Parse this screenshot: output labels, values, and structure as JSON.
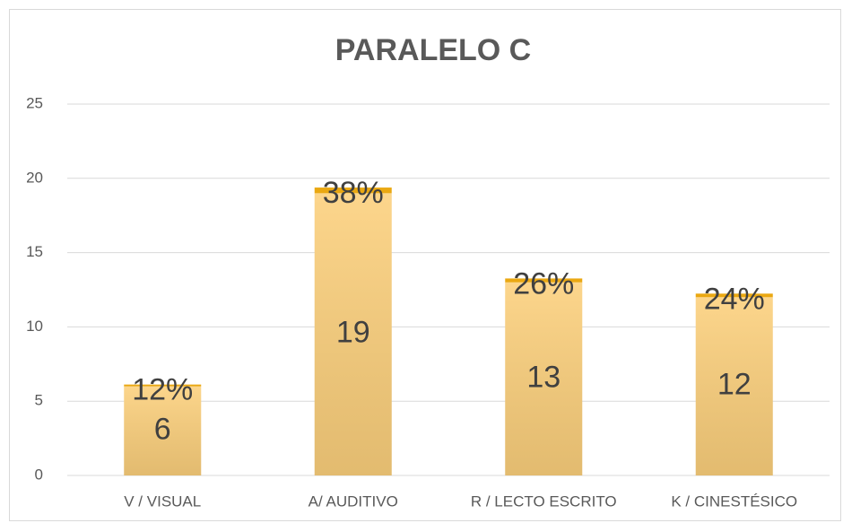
{
  "chart_data": {
    "type": "bar",
    "stacked": true,
    "title": "PARALELO C",
    "categories": [
      "V / VISUAL",
      "A/ AUDITIVO",
      "R / LECTO ESCRITO",
      "K / CINESTÉSICO"
    ],
    "series": [
      {
        "color": "#fcd07c",
        "values": [
          6,
          19,
          13,
          12
        ]
      },
      {
        "color": "#eaa812",
        "values": [
          0.12,
          0.38,
          0.26,
          0.24
        ],
        "value_labels": [
          "12%",
          "38%",
          "26%",
          "24%"
        ]
      }
    ],
    "ylim": [
      0,
      25
    ],
    "yticks": [
      0,
      5,
      10,
      15,
      20,
      25
    ],
    "grid": true
  }
}
